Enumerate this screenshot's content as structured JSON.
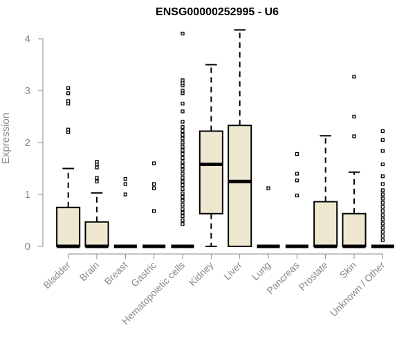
{
  "chart_data": {
    "type": "boxplot",
    "title": "ENSG00000252995 - U6",
    "ylabel": "Expression",
    "ylim": [
      0,
      4.2
    ],
    "yticks": [
      0,
      1,
      2,
      3,
      4
    ],
    "box_color": "#efe8d0",
    "categories": [
      "Bladder",
      "Brain",
      "Breast",
      "Gastric",
      "Hematopoietic cells",
      "Kidney",
      "Liver",
      "Lung",
      "Pancreas",
      "Prostate",
      "Skin",
      "Unknown / Other"
    ],
    "boxes": [
      {
        "category": "Bladder",
        "q1": 0,
        "median": 0,
        "q3": 0.75,
        "whisker_low": 0,
        "whisker_high": 1.5,
        "outliers": [
          2.2,
          2.25,
          2.75,
          2.8,
          2.95,
          3.05
        ]
      },
      {
        "category": "Brain",
        "q1": 0,
        "median": 0,
        "q3": 0.47,
        "whisker_low": 0,
        "whisker_high": 1.03,
        "outliers": [
          1.25,
          1.32,
          1.52,
          1.58,
          1.63
        ]
      },
      {
        "category": "Breast",
        "q1": 0,
        "median": 0,
        "q3": 0,
        "whisker_low": 0,
        "whisker_high": 0,
        "outliers": [
          1.0,
          1.2,
          1.3
        ]
      },
      {
        "category": "Gastric",
        "q1": 0,
        "median": 0,
        "q3": 0,
        "whisker_low": 0,
        "whisker_high": 0,
        "outliers": [
          0.68,
          1.12,
          1.2,
          1.6
        ]
      },
      {
        "category": "Hematopoietic cells",
        "q1": 0,
        "median": 0,
        "q3": 0,
        "whisker_low": 0,
        "whisker_high": 0,
        "outliers": [
          0.43,
          0.5,
          0.58,
          0.65,
          0.72,
          0.8,
          0.88,
          0.95,
          1.02,
          1.1,
          1.18,
          1.25,
          1.32,
          1.4,
          1.48,
          1.55,
          1.62,
          1.7,
          1.78,
          1.85,
          1.92,
          2.0,
          2.08,
          2.15,
          2.22,
          2.3,
          2.4,
          2.6,
          2.75,
          2.95,
          3.0,
          3.1,
          3.15,
          3.2,
          4.1
        ]
      },
      {
        "category": "Kidney",
        "q1": 0.63,
        "median": 1.58,
        "q3": 2.22,
        "whisker_low": 0,
        "whisker_high": 3.5,
        "outliers": []
      },
      {
        "category": "Liver",
        "q1": 0,
        "median": 1.25,
        "q3": 2.33,
        "whisker_low": 0,
        "whisker_high": 4.17,
        "outliers": []
      },
      {
        "category": "Lung",
        "q1": 0,
        "median": 0,
        "q3": 0,
        "whisker_low": 0,
        "whisker_high": 0,
        "outliers": [
          1.12
        ]
      },
      {
        "category": "Pancreas",
        "q1": 0,
        "median": 0,
        "q3": 0,
        "whisker_low": 0,
        "whisker_high": 0,
        "outliers": [
          0.98,
          1.27,
          1.4,
          1.78
        ]
      },
      {
        "category": "Prostate",
        "q1": 0,
        "median": 0,
        "q3": 0.86,
        "whisker_low": 0,
        "whisker_high": 2.13,
        "outliers": []
      },
      {
        "category": "Skin",
        "q1": 0,
        "median": 0,
        "q3": 0.63,
        "whisker_low": 0,
        "whisker_high": 1.43,
        "outliers": [
          2.12,
          2.5,
          3.27
        ]
      },
      {
        "category": "Unknown / Other",
        "q1": 0,
        "median": 0,
        "q3": 0,
        "whisker_low": 0,
        "whisker_high": 0,
        "outliers": [
          0.12,
          0.2,
          0.28,
          0.36,
          0.44,
          0.52,
          0.6,
          0.68,
          0.76,
          0.84,
          0.92,
          1.0,
          1.08,
          1.2,
          1.35,
          1.58,
          1.84,
          2.05,
          2.22
        ]
      }
    ]
  }
}
